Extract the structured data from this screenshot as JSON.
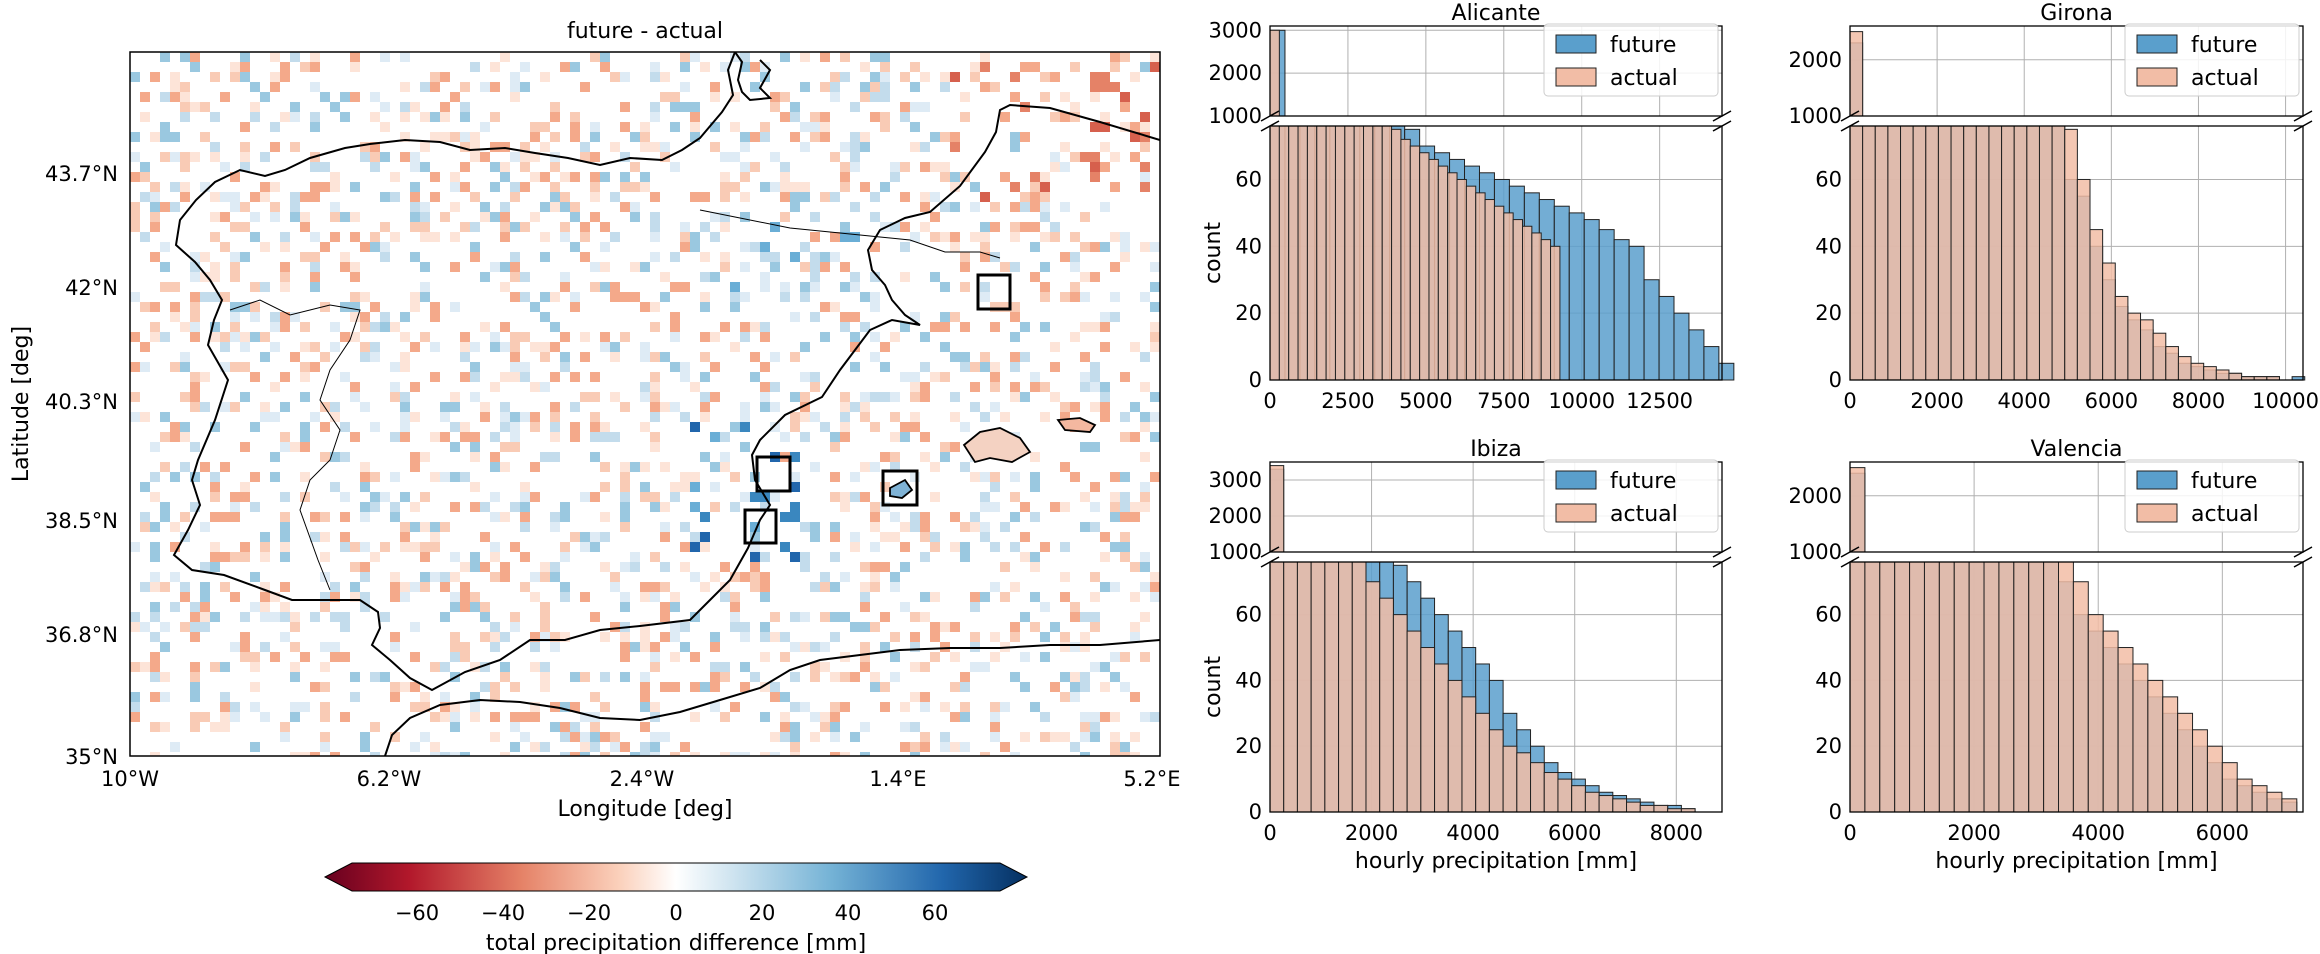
{
  "map": {
    "title": "future - actual",
    "xlabel": "Longitude [deg]",
    "ylabel": "Latitude [deg]",
    "xticks": [
      "10°W",
      "6.2°W",
      "2.4°W",
      "1.4°E",
      "5.2°E"
    ],
    "yticks": [
      "43.7°N",
      "42°N",
      "40.3°N",
      "38.5°N",
      "36.8°N",
      "35°N"
    ],
    "colorbar": {
      "label": "total precipitation difference [mm]",
      "ticks": [
        "−60",
        "−40",
        "−20",
        "0",
        "20",
        "40",
        "60"
      ],
      "range": [
        -75,
        75
      ],
      "colormap": "RdBu"
    },
    "boxes": [
      "Girona",
      "Valencia",
      "Alicante",
      "Ibiza"
    ]
  },
  "legend": {
    "future": "future",
    "actual": "actual",
    "future_color": "#5a9fcc",
    "actual_color": "#f2bda6"
  },
  "chart_data": [
    {
      "type": "bar",
      "title": "Alicante",
      "xlabel": "",
      "ylabel": "count",
      "xlim": [
        0,
        14500
      ],
      "xticks": [
        "0",
        "2500",
        "5000",
        "7500",
        "10000",
        "12500"
      ],
      "upper_ticks": [
        "3000",
        "2000",
        "1000"
      ],
      "lower_ticks": [
        "60",
        "40",
        "20",
        "0"
      ],
      "upper_range": [
        1000,
        3100
      ],
      "lower_range": [
        0,
        76
      ],
      "series": [
        {
          "name": "future",
          "bin_start": 0,
          "bin_width": 480,
          "values": [
            3000,
            190,
            160,
            130,
            110,
            95,
            90,
            85,
            80,
            75,
            70,
            68,
            66,
            64,
            62,
            60,
            58,
            56,
            54,
            52,
            50,
            48,
            45,
            42,
            40,
            30,
            25,
            20,
            15,
            10,
            5
          ]
        },
        {
          "name": "actual",
          "bin_start": 0,
          "bin_width": 300,
          "values": [
            3000,
            210,
            180,
            150,
            130,
            110,
            100,
            95,
            90,
            88,
            85,
            85,
            80,
            75,
            72,
            70,
            68,
            66,
            64,
            62,
            60,
            58,
            56,
            54,
            52,
            50,
            48,
            46,
            44,
            42,
            40
          ]
        }
      ]
    },
    {
      "type": "bar",
      "title": "Girona",
      "xlabel": "",
      "ylabel": "",
      "xlim": [
        0,
        10400
      ],
      "xticks": [
        "0",
        "2000",
        "4000",
        "6000",
        "8000",
        "10000"
      ],
      "upper_ticks": [
        "2000",
        "1000"
      ],
      "lower_ticks": [
        "60",
        "40",
        "20",
        "0"
      ],
      "upper_range": [
        1000,
        2600
      ],
      "lower_range": [
        0,
        76
      ],
      "series": [
        {
          "name": "future",
          "bin_start": 0,
          "bin_width": 290,
          "values": [
            2300,
            500,
            400,
            320,
            250,
            210,
            180,
            160,
            140,
            130,
            120,
            110,
            105,
            100,
            95,
            85,
            80,
            60,
            55,
            40,
            30,
            22,
            18,
            15,
            10,
            8,
            5,
            4,
            3,
            2,
            2,
            1,
            1,
            1,
            0,
            1
          ]
        },
        {
          "name": "actual",
          "bin_start": 0,
          "bin_width": 290,
          "values": [
            2500,
            520,
            420,
            330,
            260,
            220,
            190,
            170,
            150,
            140,
            130,
            120,
            110,
            100,
            90,
            85,
            80,
            75,
            60,
            45,
            35,
            25,
            20,
            18,
            14,
            10,
            7,
            5,
            4,
            3,
            2,
            1,
            1,
            1,
            0,
            0
          ]
        }
      ]
    },
    {
      "type": "bar",
      "title": "Ibiza",
      "xlabel": "hourly precipitation [mm]",
      "ylabel": "count",
      "xlim": [
        0,
        8900
      ],
      "xticks": [
        "0",
        "2000",
        "4000",
        "6000",
        "8000"
      ],
      "upper_ticks": [
        "3000",
        "2000",
        "1000"
      ],
      "lower_ticks": [
        "60",
        "40",
        "20",
        "0"
      ],
      "upper_range": [
        1000,
        3500
      ],
      "lower_range": [
        0,
        76
      ],
      "series": [
        {
          "name": "future",
          "bin_start": 0,
          "bin_width": 270,
          "values": [
            3300,
            140,
            120,
            80,
            100,
            90,
            100,
            90,
            80,
            75,
            70,
            65,
            60,
            55,
            50,
            45,
            40,
            30,
            25,
            20,
            15,
            12,
            10,
            8,
            6,
            5,
            4,
            3,
            2,
            2,
            1
          ]
        },
        {
          "name": "actual",
          "bin_start": 0,
          "bin_width": 270,
          "values": [
            3400,
            160,
            130,
            100,
            90,
            85,
            80,
            70,
            65,
            60,
            55,
            50,
            45,
            40,
            35,
            30,
            25,
            20,
            18,
            15,
            12,
            10,
            8,
            6,
            5,
            4,
            3,
            2,
            2,
            1,
            1
          ]
        }
      ]
    },
    {
      "type": "bar",
      "title": "Valencia",
      "xlabel": "hourly precipitation [mm]",
      "ylabel": "",
      "xlim": [
        0,
        7300
      ],
      "xticks": [
        "0",
        "2000",
        "4000",
        "6000"
      ],
      "upper_ticks": [
        "2000",
        "1000"
      ],
      "lower_ticks": [
        "60",
        "40",
        "20",
        "0"
      ],
      "upper_range": [
        1000,
        2600
      ],
      "lower_range": [
        0,
        76
      ],
      "series": [
        {
          "name": "future",
          "bin_start": 0,
          "bin_width": 240,
          "values": [
            2400,
            300,
            250,
            200,
            180,
            160,
            150,
            140,
            130,
            120,
            110,
            100,
            90,
            80,
            70,
            60,
            55,
            50,
            45,
            40,
            35,
            30,
            25,
            20,
            15,
            10,
            8,
            6,
            4,
            3
          ]
        },
        {
          "name": "actual",
          "bin_start": 0,
          "bin_width": 240,
          "values": [
            2500,
            320,
            260,
            210,
            190,
            170,
            160,
            150,
            140,
            130,
            120,
            110,
            100,
            90,
            80,
            70,
            60,
            55,
            50,
            45,
            40,
            35,
            30,
            25,
            20,
            15,
            10,
            8,
            6,
            4
          ]
        }
      ]
    }
  ]
}
